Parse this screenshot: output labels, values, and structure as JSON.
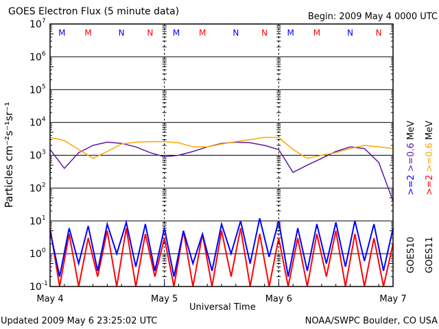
{
  "chart_data": {
    "type": "line",
    "title": "GOES Electron Flux (5 minute data)",
    "begin": "Begin: 2009 May 4 0000 UTC",
    "xlabel": "Universal Time",
    "ylabel": "Particles cm⁻²s⁻¹sr⁻¹",
    "y_scale": "log",
    "ylim": [
      0.1,
      10000000
    ],
    "y_tick_base": "10",
    "y_tick_exponents": [
      "7",
      "6",
      "5",
      "4",
      "3",
      "2",
      "1",
      "0",
      "-1"
    ],
    "x_unit": "hours since 2009 May 4 0000 UTC",
    "xlim": [
      0,
      72
    ],
    "x_ticks": [
      {
        "hour": 0,
        "label": "May 4"
      },
      {
        "hour": 24,
        "label": "May 5"
      },
      {
        "hour": 48,
        "label": "May 6"
      },
      {
        "hour": 72,
        "label": "May 7"
      }
    ],
    "reference_line": 1000,
    "markers": [
      {
        "label": "M",
        "color": "#0000ff",
        "hours": [
          2.5,
          26.5,
          50.5
        ]
      },
      {
        "label": "M",
        "color": "#ff0000",
        "hours": [
          8,
          32,
          56
        ]
      },
      {
        "label": "N",
        "color": "#0000ff",
        "hours": [
          15,
          39,
          63
        ]
      },
      {
        "label": "N",
        "color": "#ff0000",
        "hours": [
          21,
          45,
          69
        ]
      }
    ],
    "series": [
      {
        "name": "GOES10 >=0.6 MeV",
        "color": "#5a1a9e",
        "step_hours": 3,
        "values": [
          1500,
          400,
          1200,
          2000,
          2500,
          2300,
          1800,
          1200,
          900,
          1000,
          1300,
          1800,
          2300,
          2500,
          2400,
          2000,
          1500,
          300,
          500,
          800,
          1300,
          1800,
          1600,
          600,
          40
        ]
      },
      {
        "name": "GOES11 >=0.6 MeV",
        "color": "#ffa500",
        "step_hours": 3,
        "values": [
          3500,
          2800,
          1500,
          800,
          1300,
          2200,
          2500,
          2600,
          2600,
          2400,
          1800,
          1800,
          2200,
          2600,
          3000,
          3500,
          3500,
          1500,
          800,
          1000,
          1200,
          1600,
          2000,
          1800,
          1600
        ]
      },
      {
        "name": "GOES10 >=2 MeV",
        "color": "#0000ff",
        "step_hours": 2,
        "values": [
          5,
          0.2,
          6,
          0.5,
          7,
          0.3,
          8,
          1,
          9,
          0.4,
          8,
          0.3,
          6,
          0.2,
          5,
          0.5,
          4,
          0.3,
          8,
          1,
          10,
          0.5,
          12,
          0.8,
          10,
          0.2,
          6,
          0.3,
          8,
          0.5,
          9,
          0.4,
          10,
          0.6,
          8,
          0.3,
          6
        ]
      },
      {
        "name": "GOES11 >=2 MeV",
        "color": "#ff0000",
        "step_hours": 2,
        "values": [
          6,
          0.1,
          4,
          0.1,
          3,
          0.2,
          5,
          0.1,
          6,
          0.1,
          4,
          0.2,
          3,
          0.1,
          5,
          0.1,
          4,
          0.1,
          5,
          0.2,
          6,
          0.1,
          4,
          0.1,
          3,
          0.1,
          3,
          0.1,
          4,
          0.2,
          5,
          0.1,
          4,
          0.1,
          3,
          0.1,
          2
        ]
      }
    ],
    "legend": {
      "placement": "right",
      "col1": [
        {
          "text": ">=2",
          "color": "#0000ff"
        },
        {
          "text": ">=0.6",
          "color": "#5a1a9e"
        },
        {
          "text": "MeV",
          "color": "#000000"
        }
      ],
      "col2": [
        {
          "text": ">=2",
          "color": "#ff0000"
        },
        {
          "text": ">=0.6",
          "color": "#ffa500"
        },
        {
          "text": "MeV",
          "color": "#000000"
        }
      ],
      "sat1": "GOES10",
      "sat2": "GOES11"
    }
  },
  "footer": {
    "updated": "Updated 2009 May  6 23:25:02 UTC",
    "credit": "NOAA/SWPC Boulder, CO USA"
  }
}
